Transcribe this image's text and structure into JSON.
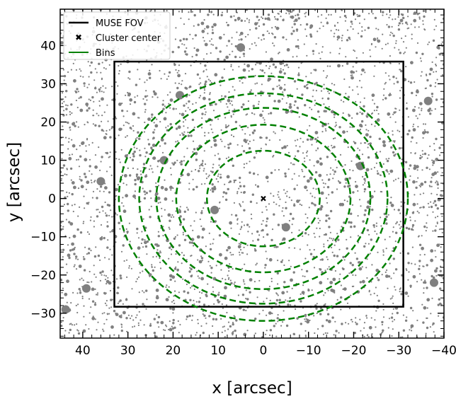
{
  "chart_data": {
    "type": "scatter",
    "xlabel": "x [arcsec]",
    "ylabel": "y [arcsec]",
    "xlim": [
      45,
      -40
    ],
    "ylim": [
      -36.5,
      49.5
    ],
    "x_inverted": true,
    "xticks": [
      40,
      30,
      20,
      10,
      0,
      -10,
      -20,
      -30,
      -40
    ],
    "yticks": [
      -30,
      -20,
      -10,
      0,
      10,
      20,
      30,
      40
    ],
    "xtick_labels": [
      "40",
      "30",
      "20",
      "10",
      "0",
      "−10",
      "−20",
      "−30",
      "−40"
    ],
    "ytick_labels": [
      "−30",
      "−20",
      "−10",
      "0",
      "10",
      "20",
      "30",
      "40"
    ],
    "minor_tick_step": 2,
    "legend": {
      "placement": "upper-left",
      "entries": [
        {
          "label": "MUSE FOV",
          "style": "line",
          "color": "#000000"
        },
        {
          "label": "Cluster center",
          "style": "x-marker",
          "color": "#000000"
        },
        {
          "label": "Bins",
          "style": "line",
          "color": "#008000"
        }
      ]
    },
    "fov": {
      "x_range": [
        33.0,
        -31.0
      ],
      "y_range": [
        -28.3,
        35.8
      ],
      "color": "#000000"
    },
    "cluster_center": {
      "x": 0,
      "y": 0
    },
    "bin_radii": [
      12.5,
      19.3,
      23.7,
      27.5,
      32.0
    ],
    "bins_color": "#008000",
    "background_sources": {
      "color": "#808080",
      "count": 3200
    },
    "large_sources": [
      {
        "x": 22,
        "y": 10
      },
      {
        "x": 10.8,
        "y": -3
      },
      {
        "x": -5,
        "y": -7.5
      },
      {
        "x": 39.2,
        "y": -23.5
      },
      {
        "x": 43.8,
        "y": -29
      },
      {
        "x": -36.5,
        "y": 25.5
      },
      {
        "x": 18.5,
        "y": 27
      },
      {
        "x": 5,
        "y": 39.5
      },
      {
        "x": 36,
        "y": 4.5
      },
      {
        "x": -21.5,
        "y": 8.5
      },
      {
        "x": -37.8,
        "y": -22
      }
    ]
  }
}
